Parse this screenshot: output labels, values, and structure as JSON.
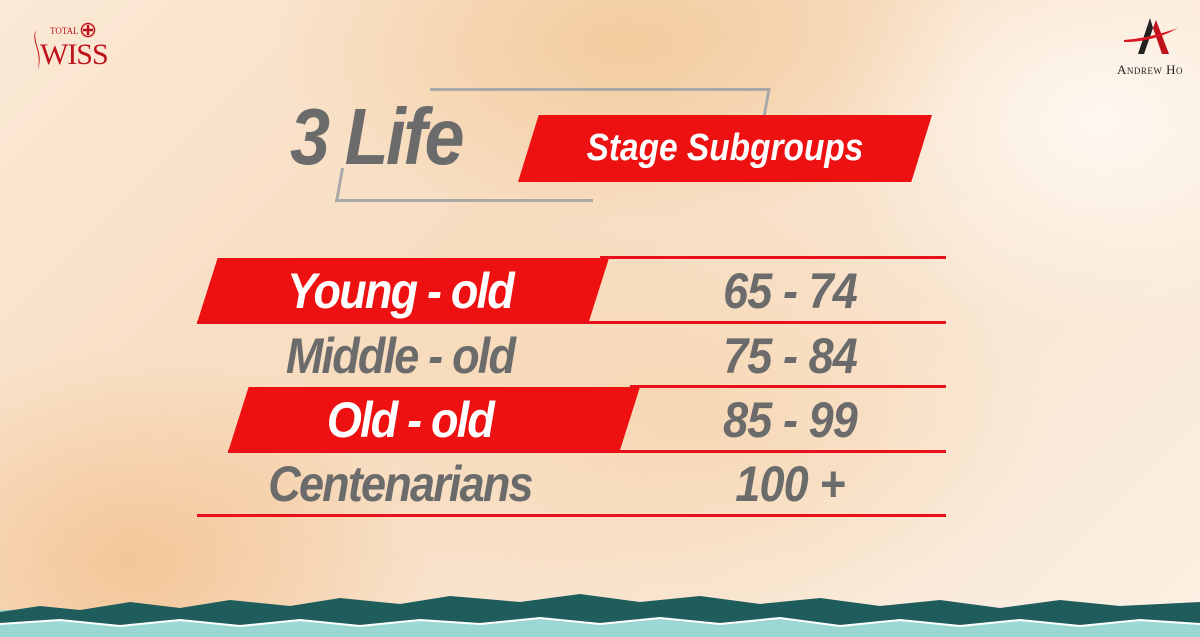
{
  "logos": {
    "left": "TOTAL SWISS",
    "right": "Andrew Ho"
  },
  "title": {
    "main": "3 Life",
    "highlight": "Stage Subgroups"
  },
  "rows": [
    {
      "label": "Young - old",
      "range": "65 - 74",
      "highlighted": true
    },
    {
      "label": "Middle - old",
      "range": "75 - 84",
      "highlighted": false
    },
    {
      "label": "Old - old",
      "range": "85 - 99",
      "highlighted": true
    },
    {
      "label": "Centenarians",
      "range": "100 +",
      "highlighted": false
    }
  ],
  "colors": {
    "accent": "#ee1111",
    "text_gray": "#6b6b6b",
    "teal_dark": "#1f5c5c",
    "teal_light": "#8fd3cf"
  }
}
